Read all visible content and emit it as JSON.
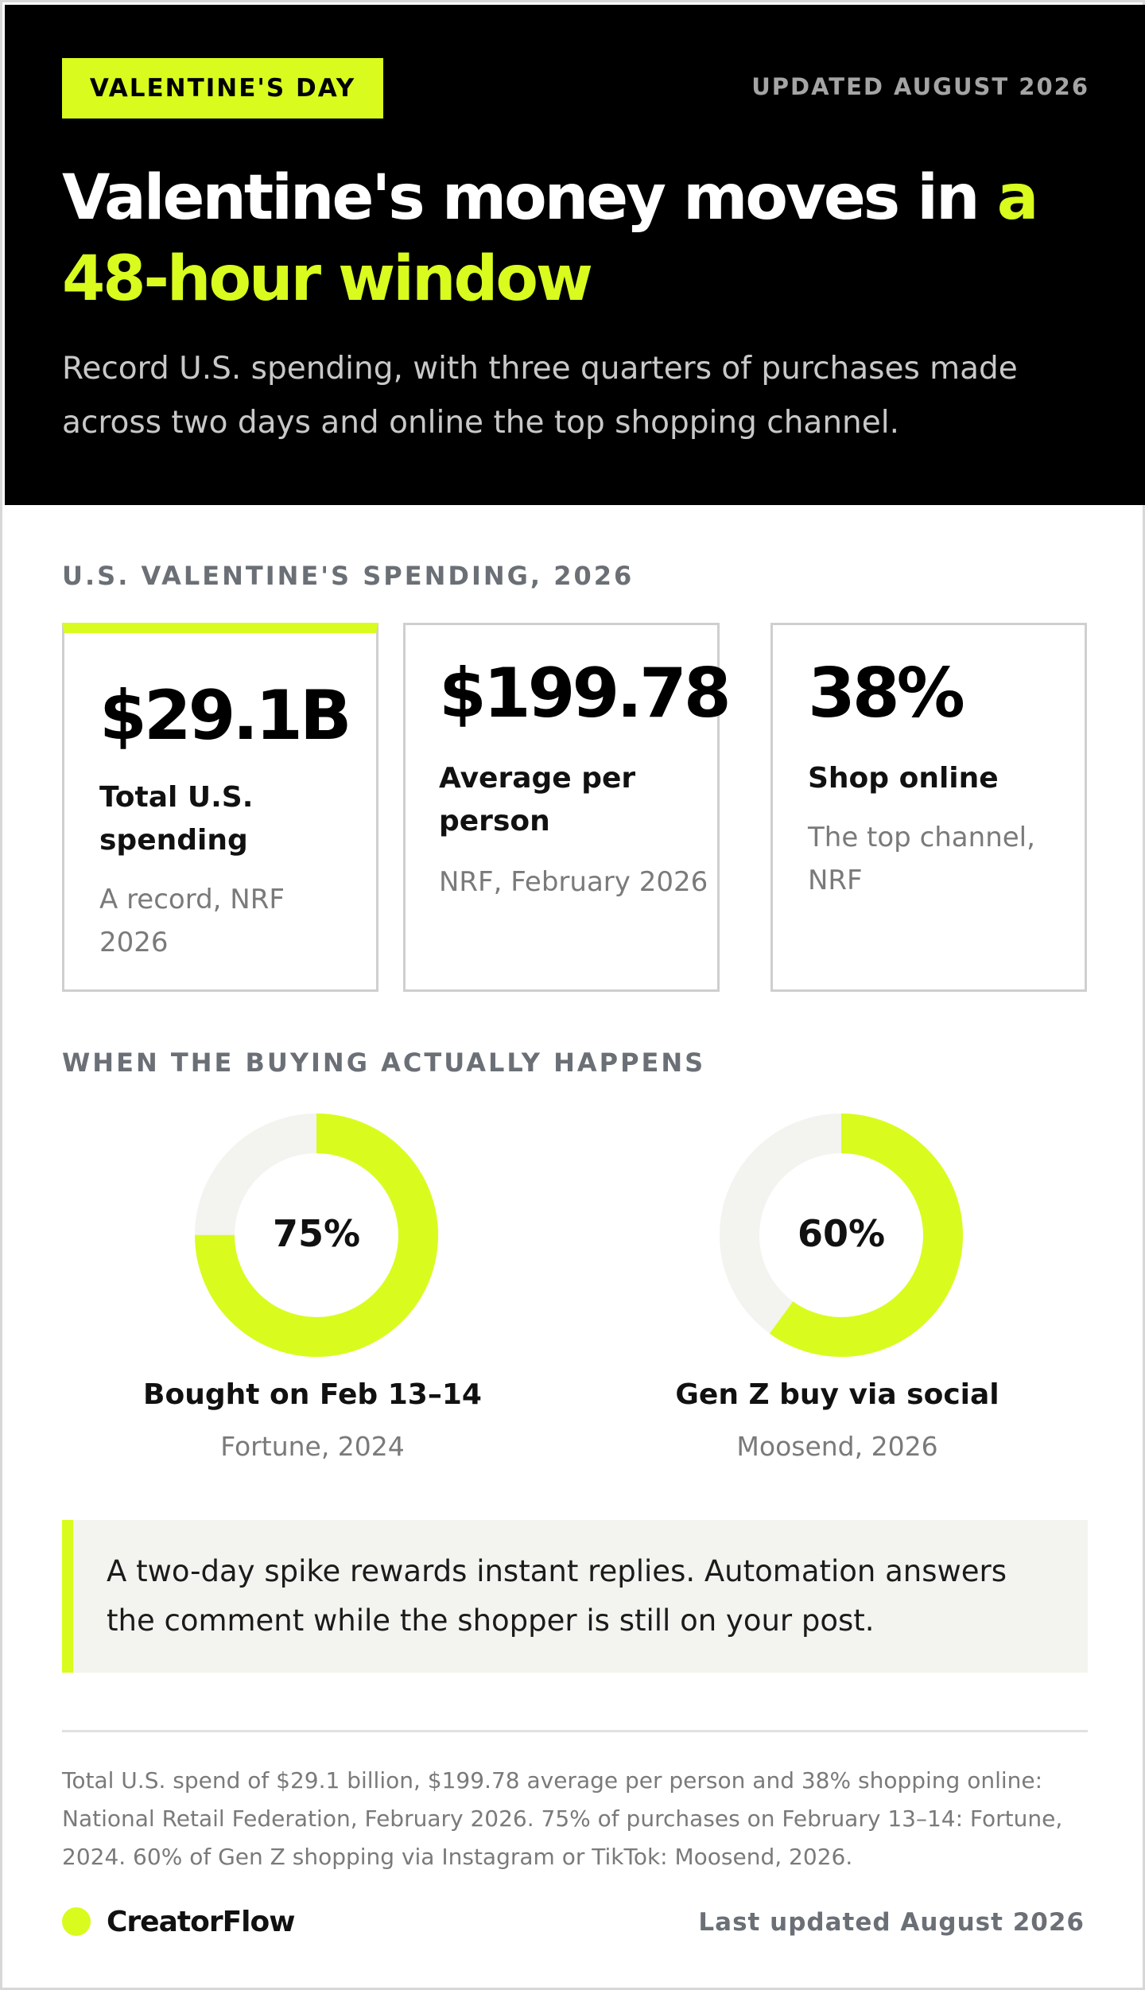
{
  "header": {
    "badge": "VALENTINE'S DAY",
    "updated": "UPDATED AUGUST 2026",
    "headline_main": "Valentine's money moves in ",
    "headline_accent": "a 48-hour window",
    "subhead": "Record U.S. spending, with three quarters of purchases made across two days and online the top shopping channel."
  },
  "stats_section": {
    "label": "U.S. VALENTINE'S SPENDING, 2026",
    "cards": [
      {
        "value": "$29.1B",
        "label": "Total U.S. spending",
        "source": "A record, NRF 2026"
      },
      {
        "value": "$199.78",
        "label": "Average per person",
        "source": "NRF, February 2026"
      },
      {
        "value": "38%",
        "label": "Shop online",
        "source": "The top channel, NRF"
      }
    ]
  },
  "timing_section": {
    "label": "WHEN THE BUYING ACTUALLY HAPPENS",
    "donuts": [
      {
        "value_label": "75%",
        "fraction": 0.75,
        "title": "Bought on Feb 13–14",
        "source": "Fortune, 2024"
      },
      {
        "value_label": "60%",
        "fraction": 0.6,
        "title": "Gen Z buy via social",
        "source": "Moosend, 2026"
      }
    ]
  },
  "callout": {
    "text": "A two-day spike rewards instant replies. Automation answers the comment while the shopper is still on your post."
  },
  "footer": {
    "sources": "Total U.S. spend of $29.1 billion, $199.78 average per person and 38% shopping online: National Retail Federation, February 2026. 75% of purchases on February 13–14: Fortune, 2024. 60% of Gen Z shopping via Instagram or TikTok: Moosend, 2026.",
    "brand": "CreatorFlow",
    "last_updated": "Last updated August 2026"
  },
  "colors": {
    "accent": "#d9fc1e",
    "header_bg": "#000000",
    "donut_track": "#f3f4ef"
  }
}
